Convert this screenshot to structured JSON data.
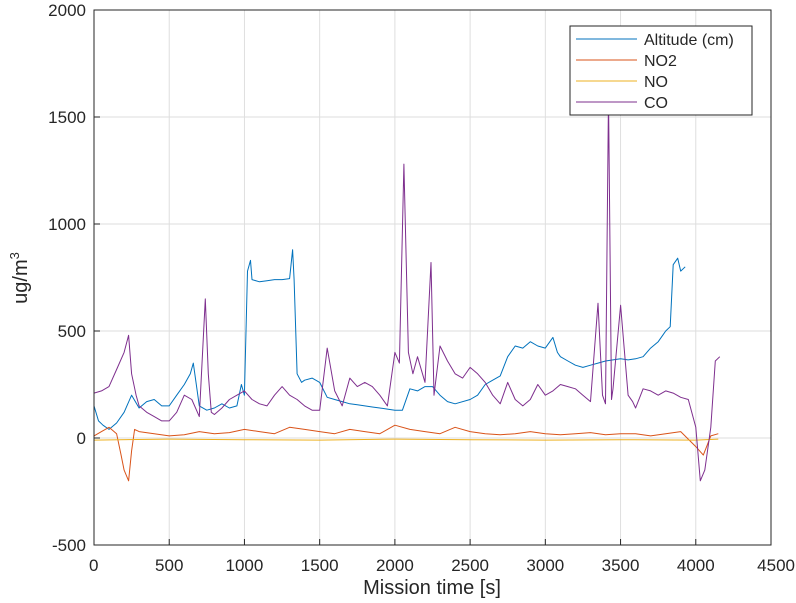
{
  "chart_data": {
    "type": "line",
    "title": "",
    "xlabel": "Mission time [s]",
    "ylabel_base": "ug/m",
    "ylabel_sup": "3",
    "xlim": [
      0,
      4500
    ],
    "ylim": [
      -500,
      2000
    ],
    "x_ticks": [
      0,
      500,
      1000,
      1500,
      2000,
      2500,
      3000,
      3500,
      4000,
      4500
    ],
    "y_ticks": [
      -500,
      0,
      500,
      1000,
      1500,
      2000
    ],
    "grid": true,
    "legend_position": "top-right",
    "series": [
      {
        "name": "Altitude (cm)",
        "color": "#0072bd",
        "x": [
          0,
          30,
          60,
          100,
          150,
          200,
          250,
          300,
          350,
          400,
          450,
          500,
          550,
          600,
          640,
          660,
          700,
          750,
          800,
          850,
          900,
          950,
          980,
          1000,
          1020,
          1040,
          1050,
          1100,
          1150,
          1200,
          1250,
          1300,
          1320,
          1330,
          1350,
          1380,
          1400,
          1450,
          1500,
          1550,
          1600,
          1650,
          1700,
          1750,
          1800,
          1850,
          1900,
          1950,
          2000,
          2050,
          2100,
          2150,
          2200,
          2250,
          2300,
          2350,
          2400,
          2500,
          2550,
          2600,
          2650,
          2700,
          2750,
          2800,
          2850,
          2900,
          2950,
          3000,
          3050,
          3080,
          3100,
          3150,
          3200,
          3250,
          3300,
          3350,
          3400,
          3450,
          3500,
          3550,
          3600,
          3650,
          3700,
          3750,
          3780,
          3800,
          3830,
          3850,
          3880,
          3900,
          3930
        ],
        "values": [
          150,
          80,
          60,
          40,
          70,
          120,
          200,
          140,
          170,
          180,
          150,
          150,
          200,
          250,
          300,
          350,
          150,
          130,
          140,
          160,
          140,
          150,
          250,
          200,
          780,
          830,
          740,
          730,
          735,
          740,
          740,
          745,
          880,
          740,
          300,
          260,
          270,
          280,
          260,
          190,
          180,
          170,
          160,
          155,
          150,
          145,
          140,
          135,
          130,
          130,
          230,
          220,
          240,
          240,
          200,
          170,
          160,
          180,
          200,
          250,
          270,
          290,
          380,
          430,
          420,
          450,
          430,
          420,
          470,
          400,
          380,
          360,
          340,
          330,
          340,
          350,
          360,
          365,
          370,
          365,
          370,
          380,
          420,
          450,
          480,
          500,
          520,
          810,
          840,
          780,
          800
        ]
      },
      {
        "name": "NO2",
        "color": "#d95319",
        "x": [
          0,
          50,
          100,
          150,
          180,
          200,
          230,
          250,
          270,
          300,
          400,
          500,
          600,
          700,
          800,
          900,
          1000,
          1100,
          1200,
          1300,
          1400,
          1500,
          1600,
          1700,
          1800,
          1900,
          2000,
          2100,
          2200,
          2300,
          2400,
          2500,
          2600,
          2700,
          2800,
          2900,
          3000,
          3100,
          3200,
          3300,
          3400,
          3500,
          3600,
          3700,
          3800,
          3900,
          4000,
          4050,
          4100,
          4150
        ],
        "values": [
          10,
          30,
          50,
          20,
          -80,
          -150,
          -200,
          -60,
          40,
          30,
          20,
          10,
          15,
          30,
          20,
          25,
          40,
          30,
          20,
          50,
          40,
          30,
          20,
          40,
          30,
          20,
          60,
          40,
          30,
          20,
          50,
          30,
          20,
          15,
          20,
          30,
          20,
          15,
          20,
          25,
          15,
          20,
          20,
          10,
          20,
          30,
          -40,
          -80,
          10,
          20
        ]
      },
      {
        "name": "NO",
        "color": "#edb120",
        "x": [
          0,
          500,
          1000,
          1500,
          2000,
          2500,
          3000,
          3500,
          4000,
          4150
        ],
        "values": [
          -10,
          -5,
          -8,
          -10,
          -5,
          -8,
          -10,
          -8,
          -10,
          -5
        ]
      },
      {
        "name": "CO",
        "color": "#7e2f8e",
        "x": [
          0,
          50,
          100,
          150,
          200,
          230,
          250,
          280,
          300,
          350,
          400,
          450,
          500,
          550,
          600,
          650,
          700,
          740,
          760,
          780,
          800,
          850,
          900,
          950,
          1000,
          1050,
          1100,
          1150,
          1200,
          1250,
          1300,
          1350,
          1400,
          1450,
          1500,
          1550,
          1600,
          1650,
          1700,
          1750,
          1800,
          1850,
          1900,
          1950,
          2000,
          2030,
          2060,
          2090,
          2120,
          2150,
          2200,
          2240,
          2260,
          2300,
          2350,
          2400,
          2450,
          2500,
          2550,
          2600,
          2650,
          2700,
          2750,
          2800,
          2850,
          2900,
          2950,
          3000,
          3050,
          3100,
          3150,
          3200,
          3250,
          3300,
          3350,
          3380,
          3400,
          3420,
          3440,
          3450,
          3500,
          3550,
          3580,
          3600,
          3650,
          3700,
          3750,
          3800,
          3850,
          3900,
          3950,
          4000,
          4030,
          4060,
          4100,
          4130,
          4160
        ],
        "values": [
          210,
          220,
          240,
          320,
          400,
          480,
          300,
          200,
          150,
          120,
          100,
          80,
          80,
          120,
          200,
          180,
          100,
          650,
          300,
          120,
          110,
          140,
          180,
          200,
          220,
          180,
          160,
          150,
          200,
          240,
          200,
          180,
          150,
          130,
          130,
          420,
          220,
          150,
          280,
          240,
          260,
          240,
          200,
          150,
          400,
          350,
          1280,
          400,
          300,
          380,
          260,
          820,
          200,
          430,
          360,
          300,
          280,
          330,
          300,
          260,
          200,
          160,
          260,
          180,
          150,
          180,
          250,
          200,
          220,
          250,
          240,
          230,
          200,
          170,
          630,
          200,
          160,
          1600,
          180,
          230,
          620,
          200,
          170,
          140,
          230,
          220,
          200,
          220,
          210,
          190,
          180,
          50,
          -200,
          -150,
          50,
          360,
          380
        ]
      }
    ]
  }
}
